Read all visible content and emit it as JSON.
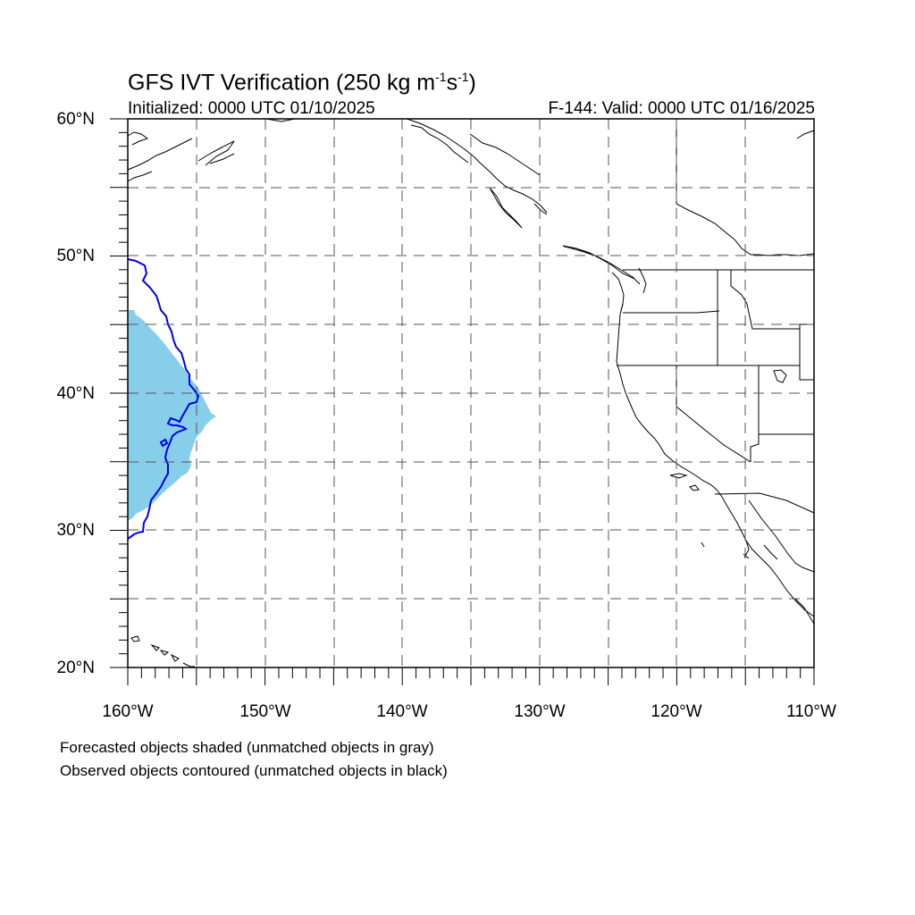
{
  "map": {
    "title_main": "GFS IVT Verification (250 kg m",
    "title_sup1": "-1",
    "title_mid": "s",
    "title_sup2": "-1",
    "title_end": ")",
    "init_label": "Initialized: 0000 UTC 01/10/2025",
    "valid_label": "F-144: Valid: 0000 UTC 01/16/2025",
    "lat_labels": [
      "60°N",
      "50°N",
      "40°N",
      "30°N",
      "20°N"
    ],
    "lon_labels": [
      "160°W",
      "150°W",
      "140°W",
      "130°W",
      "120°W",
      "110°W"
    ],
    "legend": {
      "forecast_note": "Forecasted objects shaded (unmatched objects in gray)",
      "observed_note": "Observed objects contoured (unmatched objects in black)"
    },
    "extent": {
      "lon_min": -160,
      "lon_max": -110,
      "lat_min": 20,
      "lat_max": 60
    },
    "colors": {
      "forecast_fill": "#87ceeb",
      "observed_contour": "#0000ee",
      "coastline": "#000000",
      "grid": "#555555"
    }
  }
}
